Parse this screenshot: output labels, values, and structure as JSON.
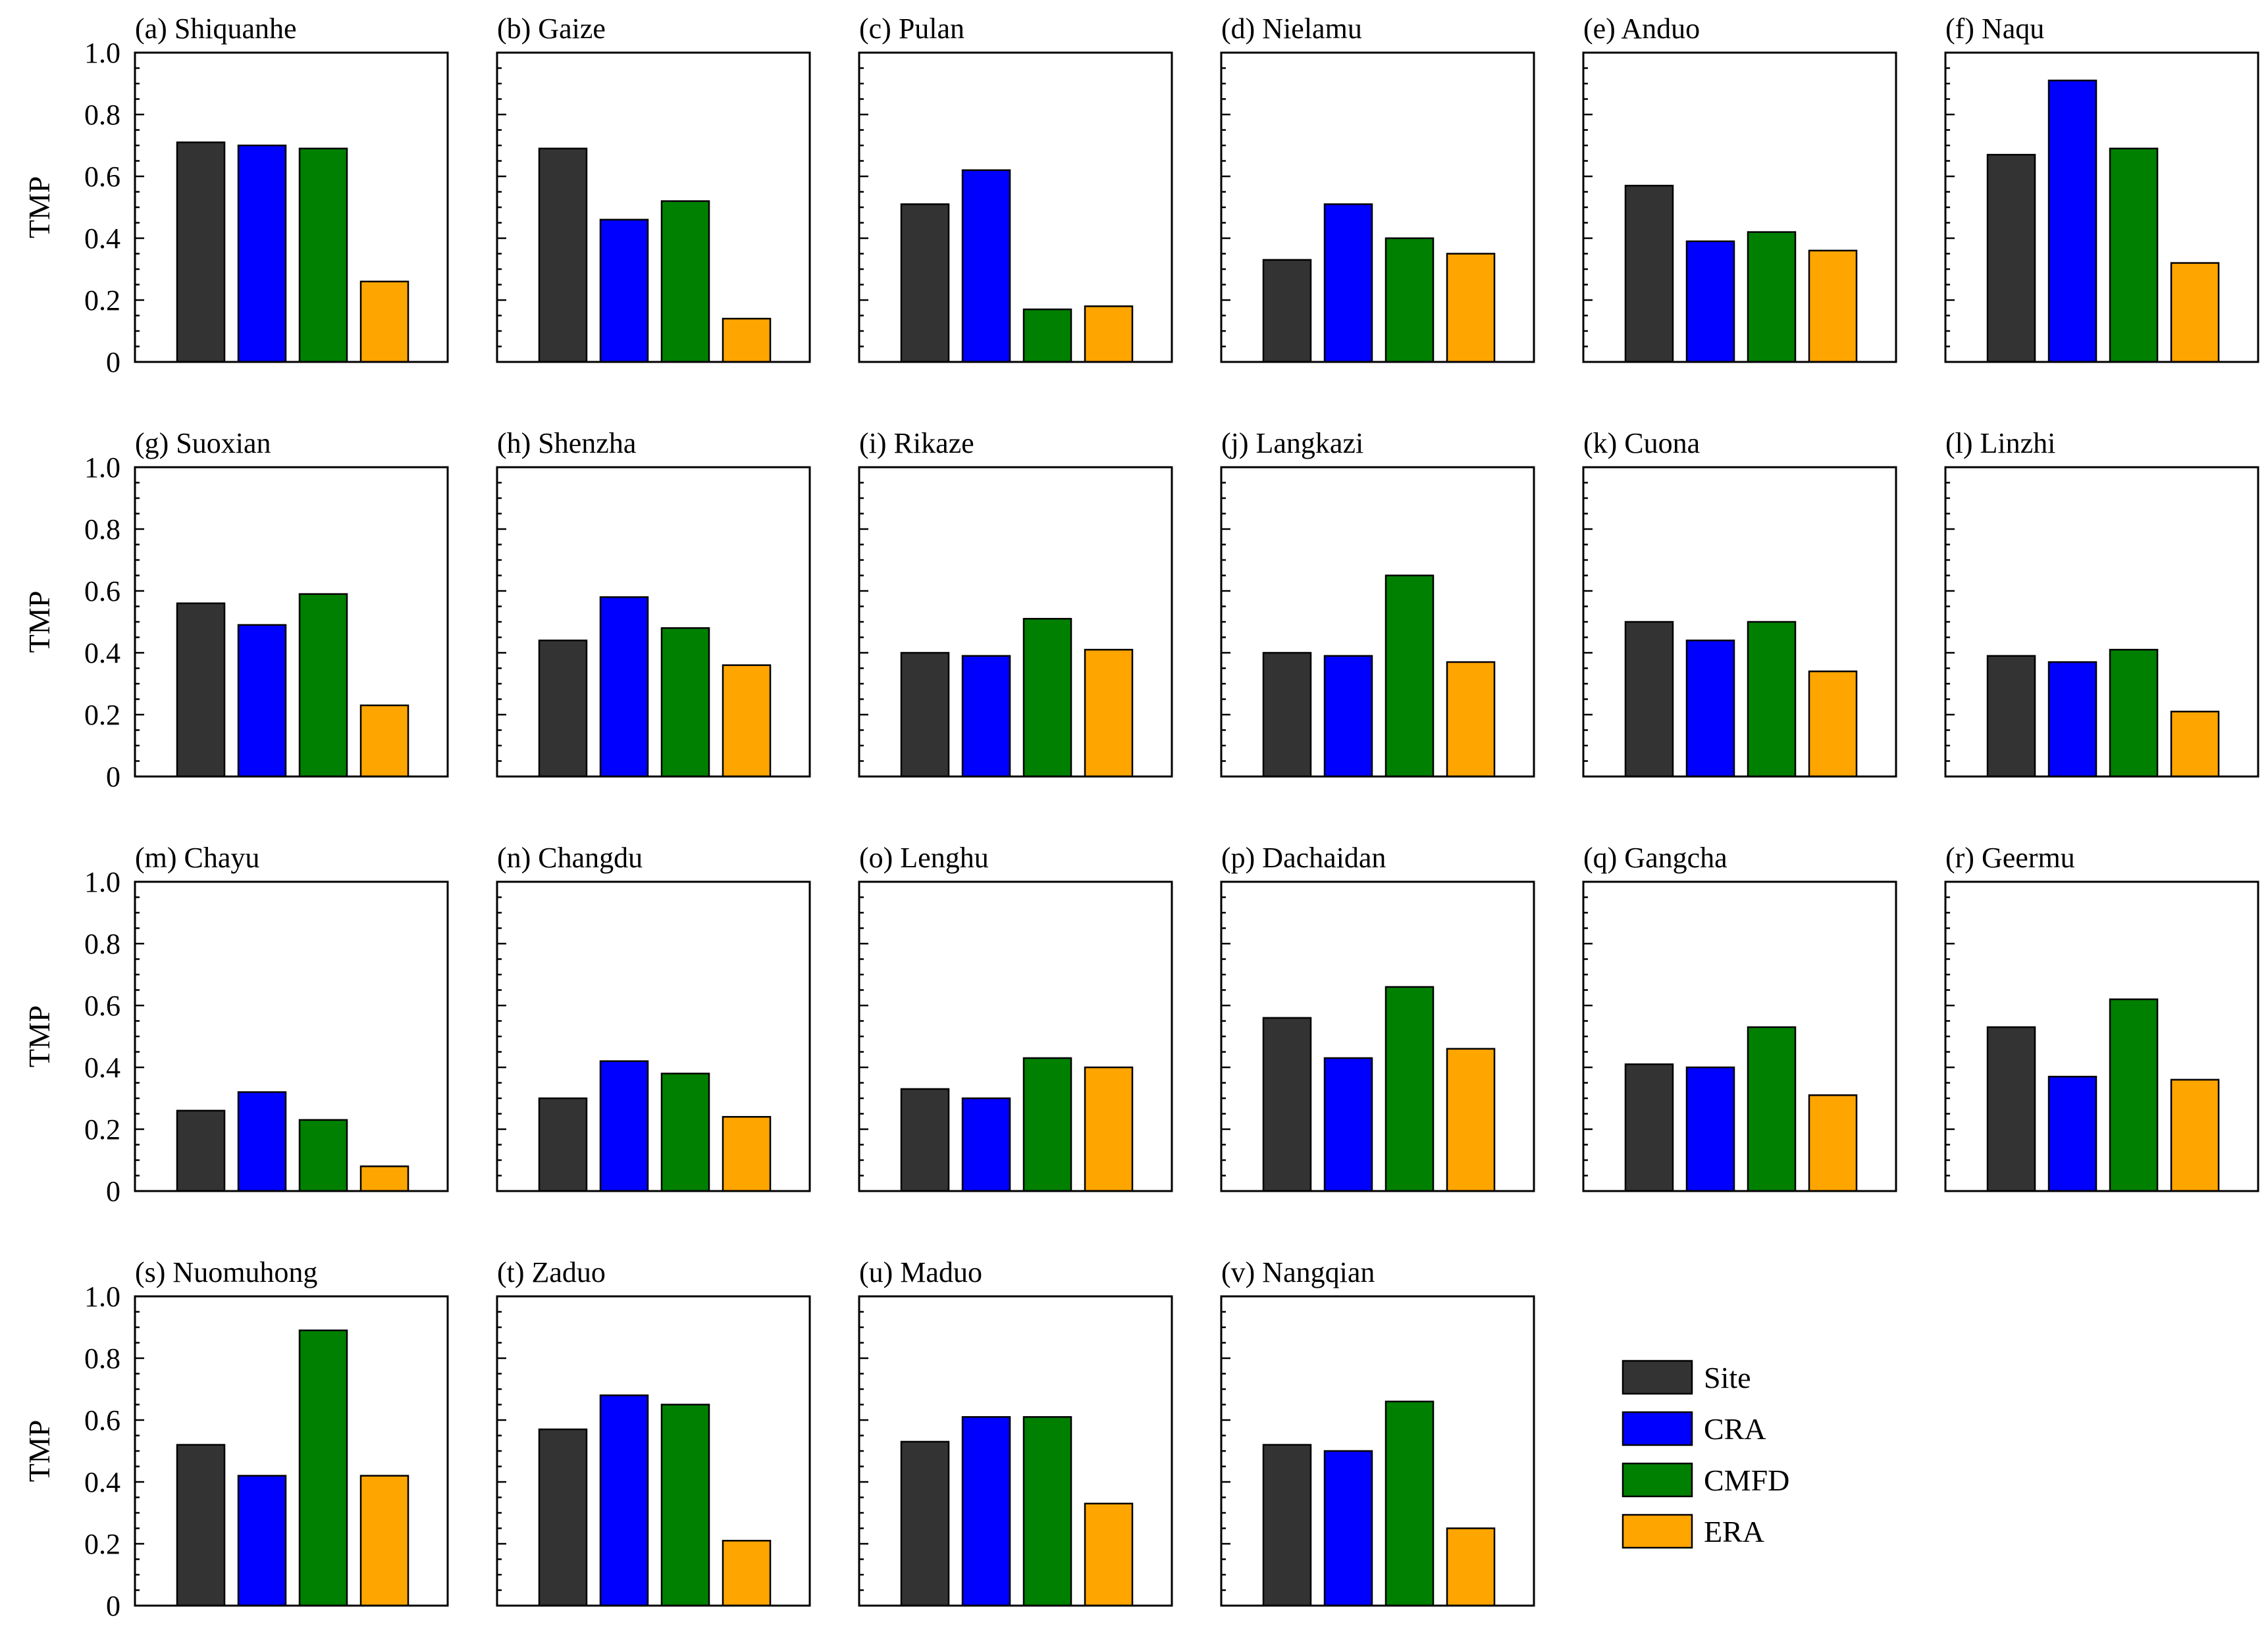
{
  "chart_data": {
    "type": "bar",
    "ylabel": "TMP",
    "ylim": [
      0,
      1.0
    ],
    "yticks": [
      0,
      0.2,
      0.4,
      0.6,
      0.8,
      1.0
    ],
    "ytick_labels": [
      "0",
      "0.2",
      "0.4",
      "0.6",
      "0.8",
      "1.0"
    ],
    "series": [
      {
        "name": "Site",
        "color": "#333333"
      },
      {
        "name": "CRA",
        "color": "#0000ff"
      },
      {
        "name": "CMFD",
        "color": "#008000"
      },
      {
        "name": "ERA",
        "color": "#ffa500"
      }
    ],
    "legend_position": "bottom-right",
    "panels": [
      {
        "title": "(a) Shiquanhe",
        "values": [
          0.71,
          0.7,
          0.69,
          0.26
        ]
      },
      {
        "title": "(b) Gaize",
        "values": [
          0.69,
          0.46,
          0.52,
          0.14
        ]
      },
      {
        "title": "(c) Pulan",
        "values": [
          0.51,
          0.62,
          0.17,
          0.18
        ]
      },
      {
        "title": "(d) Nielamu",
        "values": [
          0.33,
          0.51,
          0.4,
          0.35
        ]
      },
      {
        "title": "(e) Anduo",
        "values": [
          0.57,
          0.39,
          0.42,
          0.36
        ]
      },
      {
        "title": "(f) Naqu",
        "values": [
          0.67,
          0.91,
          0.69,
          0.32
        ]
      },
      {
        "title": "(g) Suoxian",
        "values": [
          0.56,
          0.49,
          0.59,
          0.23
        ]
      },
      {
        "title": "(h) Shenzha",
        "values": [
          0.44,
          0.58,
          0.48,
          0.36
        ]
      },
      {
        "title": "(i) Rikaze",
        "values": [
          0.4,
          0.39,
          0.51,
          0.41
        ]
      },
      {
        "title": "(j) Langkazi",
        "values": [
          0.4,
          0.39,
          0.65,
          0.37
        ]
      },
      {
        "title": "(k) Cuona",
        "values": [
          0.5,
          0.44,
          0.5,
          0.34
        ]
      },
      {
        "title": "(l) Linzhi",
        "values": [
          0.39,
          0.37,
          0.41,
          0.21
        ]
      },
      {
        "title": "(m) Chayu",
        "values": [
          0.26,
          0.32,
          0.23,
          0.08
        ]
      },
      {
        "title": "(n) Changdu",
        "values": [
          0.3,
          0.42,
          0.38,
          0.24
        ]
      },
      {
        "title": "(o) Lenghu",
        "values": [
          0.33,
          0.3,
          0.43,
          0.4
        ]
      },
      {
        "title": "(p) Dachaidan",
        "values": [
          0.56,
          0.43,
          0.66,
          0.46
        ]
      },
      {
        "title": "(q) Gangcha",
        "values": [
          0.41,
          0.4,
          0.53,
          0.31
        ]
      },
      {
        "title": "(r) Geermu",
        "values": [
          0.53,
          0.37,
          0.62,
          0.36
        ]
      },
      {
        "title": "(s) Nuomuhong",
        "values": [
          0.52,
          0.42,
          0.89,
          0.42
        ]
      },
      {
        "title": "(t) Zaduo",
        "values": [
          0.57,
          0.68,
          0.65,
          0.21
        ]
      },
      {
        "title": "(u) Maduo",
        "values": [
          0.53,
          0.61,
          0.61,
          0.33
        ]
      },
      {
        "title": "(v) Nangqian",
        "values": [
          0.52,
          0.5,
          0.66,
          0.25
        ]
      }
    ]
  }
}
